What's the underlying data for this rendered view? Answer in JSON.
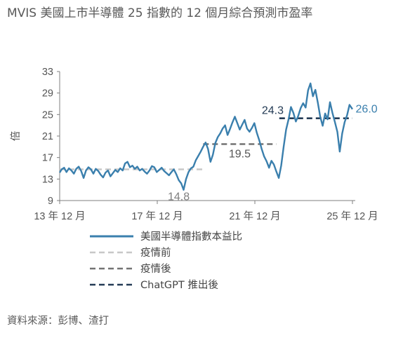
{
  "title": "MVIS 美國上市半導體 25 指數的 12 個月綜合預測市盈率",
  "source": "資料來源：彭博、渣打",
  "chart_data": {
    "type": "line",
    "ylabel": "倍",
    "ylim": [
      9,
      33
    ],
    "yticks": [
      "33",
      "29",
      "25",
      "21",
      "17",
      "13",
      "9"
    ],
    "xlim": [
      2013.92,
      2025.92
    ],
    "xticks": [
      {
        "x": 2013.92,
        "label": "13 年 12 月"
      },
      {
        "x": 2017.92,
        "label": "17 年 12 月"
      },
      {
        "x": 2021.92,
        "label": "21 年 12 月"
      },
      {
        "x": 2025.92,
        "label": "25 年 12 月"
      }
    ],
    "legend_position": "bottom",
    "series": [
      {
        "name": "美國半導體指數本益比",
        "color": "#3a7fad",
        "style": "solid",
        "x": [
          2013.92,
          2014.0,
          2014.1,
          2014.2,
          2014.3,
          2014.4,
          2014.5,
          2014.6,
          2014.7,
          2014.8,
          2014.9,
          2015.0,
          2015.1,
          2015.2,
          2015.3,
          2015.4,
          2015.5,
          2015.6,
          2015.7,
          2015.8,
          2015.9,
          2016.0,
          2016.1,
          2016.2,
          2016.3,
          2016.4,
          2016.5,
          2016.6,
          2016.7,
          2016.8,
          2016.9,
          2017.0,
          2017.1,
          2017.2,
          2017.3,
          2017.4,
          2017.5,
          2017.6,
          2017.7,
          2017.8,
          2017.9,
          2018.0,
          2018.1,
          2018.2,
          2018.3,
          2018.4,
          2018.5,
          2018.6,
          2018.7,
          2018.8,
          2018.9,
          2019.0,
          2019.1,
          2019.2,
          2019.3,
          2019.4,
          2019.5,
          2019.6,
          2019.7,
          2019.8,
          2019.9,
          2020.0,
          2020.1,
          2020.2,
          2020.3,
          2020.4,
          2020.5,
          2020.6,
          2020.7,
          2020.8,
          2020.9,
          2021.0,
          2021.1,
          2021.2,
          2021.3,
          2021.4,
          2021.5,
          2021.6,
          2021.7,
          2021.8,
          2021.9,
          2022.0,
          2022.1,
          2022.2,
          2022.3,
          2022.4,
          2022.5,
          2022.6,
          2022.7,
          2022.8,
          2022.9,
          2023.0,
          2023.1,
          2023.2,
          2023.3,
          2023.4,
          2023.5,
          2023.6,
          2023.7,
          2023.8,
          2023.9,
          2024.0,
          2024.1,
          2024.2,
          2024.3,
          2024.4,
          2024.5,
          2024.6,
          2024.7,
          2024.8,
          2024.9,
          2025.0,
          2025.1,
          2025.2,
          2025.3,
          2025.4,
          2025.5,
          2025.6,
          2025.7,
          2025.8,
          2025.92
        ],
        "y": [
          14.2,
          14.8,
          15.1,
          14.3,
          15.0,
          14.6,
          14.0,
          14.9,
          15.3,
          14.5,
          13.2,
          14.6,
          15.2,
          14.8,
          14.0,
          14.9,
          14.5,
          13.8,
          13.3,
          14.2,
          14.6,
          13.5,
          14.1,
          14.7,
          14.3,
          15.0,
          14.6,
          15.9,
          16.2,
          15.2,
          15.5,
          14.9,
          15.3,
          14.6,
          14.9,
          14.4,
          14.0,
          14.6,
          15.4,
          15.2,
          14.3,
          14.7,
          15.1,
          14.5,
          14.1,
          13.7,
          14.3,
          14.8,
          13.9,
          12.8,
          12.2,
          11.0,
          13.0,
          14.3,
          15.0,
          15.3,
          16.5,
          17.3,
          18.1,
          19.0,
          19.8,
          18.6,
          16.2,
          17.5,
          19.7,
          20.8,
          21.5,
          22.4,
          23.0,
          21.2,
          22.3,
          23.5,
          24.6,
          23.4,
          22.2,
          23.1,
          24.0,
          22.4,
          21.8,
          22.5,
          23.4,
          21.6,
          20.2,
          18.6,
          17.2,
          16.3,
          15.1,
          16.4,
          15.7,
          14.4,
          13.2,
          15.5,
          19.0,
          22.2,
          24.1,
          26.4,
          25.3,
          23.7,
          24.8,
          26.2,
          27.1,
          26.3,
          29.5,
          30.8,
          28.4,
          29.6,
          27.2,
          24.6,
          22.9,
          25.2,
          24.1,
          27.3,
          25.3,
          23.6,
          21.8,
          18.1,
          21.5,
          23.6,
          24.9,
          26.8,
          26.0
        ]
      },
      {
        "name": "疫情前",
        "color": "#c8c8c8",
        "style": "dashed",
        "x": [
          2013.92,
          2019.8
        ],
        "y": [
          14.8,
          14.8
        ],
        "label": "14.8"
      },
      {
        "name": "疫情後",
        "color": "#737373",
        "style": "dashed",
        "x": [
          2019.8,
          2022.8
        ],
        "y": [
          19.5,
          19.5
        ],
        "label": "19.5"
      },
      {
        "name": "ChatGPT 推出後",
        "color": "#243b55",
        "style": "dashed",
        "x": [
          2022.92,
          2025.92
        ],
        "y": [
          24.3,
          24.3
        ],
        "label": "24.3"
      }
    ],
    "annotations": [
      {
        "text": "14.8",
        "color": "#7f7f7f"
      },
      {
        "text": "19.5",
        "color": "#555555"
      },
      {
        "text": "24.3",
        "color": "#243b55"
      },
      {
        "text": "26.0",
        "color": "#3a7fad"
      }
    ]
  }
}
